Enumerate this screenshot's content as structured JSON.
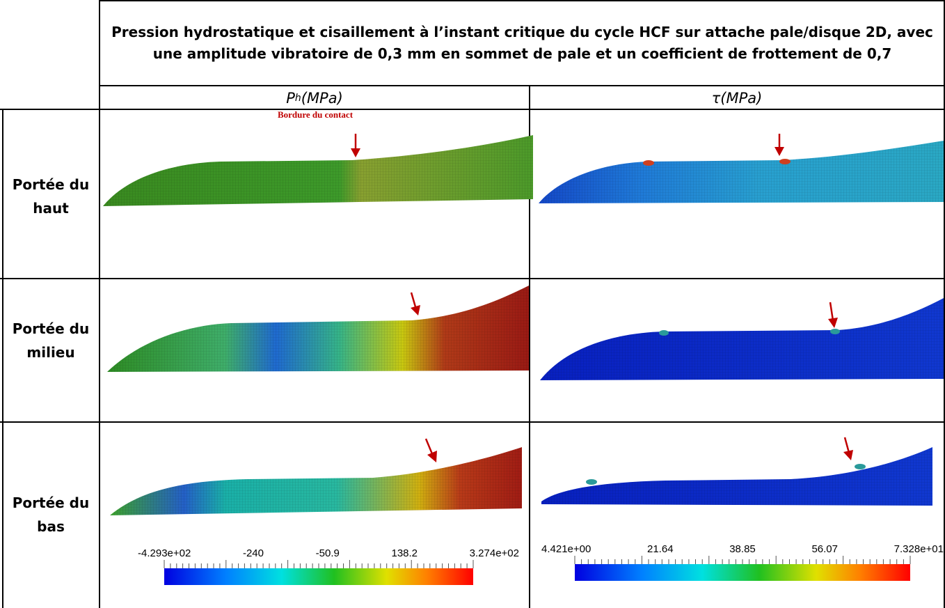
{
  "table": {
    "title": "Pression hydrostatique et cisaillement à l’instant critique du cycle HCF sur attache pale/disque 2D, avec une amplitude vibratoire de 0,3 mm en sommet de pale et un coefficient de frottement de 0,7",
    "columns": [
      {
        "name": "P",
        "subscript": "h",
        "unit": " (MPa)"
      },
      {
        "name": "τ",
        "unit": "(MPa)"
      }
    ],
    "rows": [
      {
        "label": "Portée du haut"
      },
      {
        "label": "Portée du milieu"
      },
      {
        "label": "Portée du bas"
      }
    ]
  },
  "annotation": {
    "contact_edge_label": "Bordure du contact"
  },
  "colorbars": {
    "pressure": {
      "ticks": [
        "-4.293e+02",
        "-240",
        "-50.9",
        "138.2",
        "3.274e+02"
      ]
    },
    "shear": {
      "ticks": [
        "4.421e+00",
        "21.64",
        "38.85",
        "56.07",
        "7.328e+01"
      ]
    }
  },
  "colors": {
    "arrow": "#c00000",
    "grid": "#000000"
  }
}
